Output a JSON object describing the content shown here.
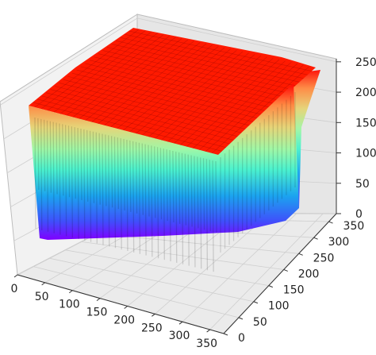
{
  "chart_data": {
    "type": "surface3d",
    "colormap": "rainbow",
    "title": "",
    "xlabel": "",
    "ylabel": "",
    "zlabel": "",
    "xlim": [
      0,
      375
    ],
    "ylim": [
      0,
      375
    ],
    "zlim": [
      0,
      255
    ],
    "x_ticks": [
      "0",
      "50",
      "100",
      "150",
      "200",
      "250",
      "300",
      "350"
    ],
    "y_ticks": [
      "0",
      "50",
      "100",
      "150",
      "200",
      "250",
      "300",
      "350"
    ],
    "z_ticks": [
      "0",
      "50",
      "100",
      "150",
      "200",
      "250"
    ],
    "grid": true,
    "surface": {
      "description_values": "oscillating ridges along the front edge from ~0 up to 255, plateau at 255 on top",
      "grid_x": [
        0,
        25,
        50,
        75,
        100,
        125,
        150,
        175,
        200,
        225,
        250,
        275,
        300,
        325,
        350,
        375
      ],
      "grid_y": [
        0,
        25,
        50,
        75,
        100,
        125,
        150,
        175,
        200,
        225,
        250,
        275,
        300,
        325,
        350,
        375
      ],
      "plateau_z": 255,
      "min_z": 0
    }
  }
}
